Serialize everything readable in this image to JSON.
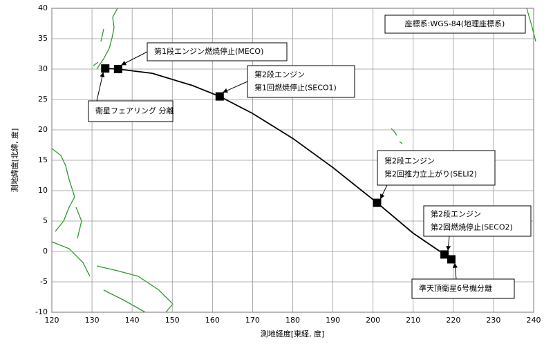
{
  "chart_data": {
    "type": "line",
    "xlabel": "測地経度[東経, 度]",
    "ylabel": "測地緯度[北緯, 度]",
    "note": "座標系:WGS-84(地理座標系)",
    "xlim": [
      120,
      240
    ],
    "xticks": [
      120,
      130,
      140,
      150,
      160,
      170,
      180,
      190,
      200,
      210,
      220,
      230,
      240
    ],
    "ylim": [
      -10,
      40
    ],
    "yticks": [
      -10,
      -5,
      0,
      5,
      10,
      15,
      20,
      25,
      30,
      35,
      40
    ],
    "grid": true,
    "x": [
      133.3,
      136.5,
      145,
      155,
      161.8,
      170,
      180,
      190,
      201,
      210,
      217.8,
      219.5
    ],
    "series": [
      {
        "color": "#000000",
        "values": [
          30.1,
          30.0,
          29.3,
          27.3,
          25.5,
          22.7,
          18.6,
          13.8,
          8.0,
          3.0,
          -0.5,
          -1.3
        ]
      }
    ],
    "events": {
      "color": "#000000",
      "x": [
        133.3,
        136.5,
        161.8,
        201,
        217.8,
        219.5
      ],
      "values": [
        30.1,
        30.0,
        25.5,
        8.0,
        -0.5,
        -1.3
      ],
      "labels": [
        [
          "衛星フェアリング 分離"
        ],
        [
          "第1段エンジン燃焼停止(MECO)"
        ],
        [
          "第2段エンジン",
          "第1回燃焼停止(SECO1)"
        ],
        [
          "第2段エンジン",
          "第2回推力立上がり(SELI2)"
        ],
        [
          "第2段エンジン",
          "第2回燃焼停止(SECO2)"
        ],
        [
          "準天頂衛星6号機分離"
        ]
      ]
    }
  }
}
